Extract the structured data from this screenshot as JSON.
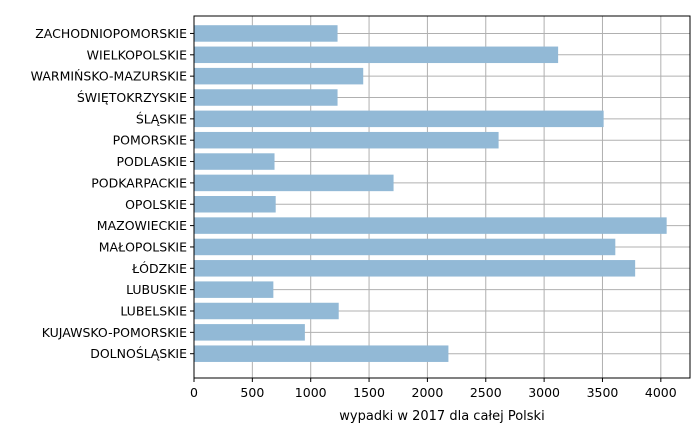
{
  "chart_data": {
    "type": "bar",
    "orientation": "horizontal",
    "title": "",
    "xlabel": "wypadki w 2017 dla całej Polski",
    "ylabel": "",
    "xlim": [
      0,
      4250
    ],
    "xticks": [
      0,
      500,
      1000,
      1500,
      2000,
      2500,
      3000,
      3500,
      4000
    ],
    "grid": true,
    "bar_color": "#92b9d6",
    "categories": [
      "DOLNOŚLĄSKIE",
      "KUJAWSKO-POMORSKIE",
      "LUBELSKIE",
      "LUBUSKIE",
      "ŁÓDZKIE",
      "MAŁOPOLSKIE",
      "MAZOWIECKIE",
      "OPOLSKIE",
      "PODKARPACKIE",
      "PODLASKIE",
      "POMORSKIE",
      "ŚLĄSKIE",
      "ŚWIĘTOKRZYSKIE",
      "WARMIŃSKO-MAZURSKIE",
      "WIELKOPOLSKIE",
      "ZACHODNIOPOMORSKIE"
    ],
    "values": [
      2180,
      950,
      1240,
      680,
      3780,
      3610,
      4050,
      700,
      1710,
      690,
      2610,
      3510,
      1230,
      1450,
      3120,
      1230
    ]
  }
}
